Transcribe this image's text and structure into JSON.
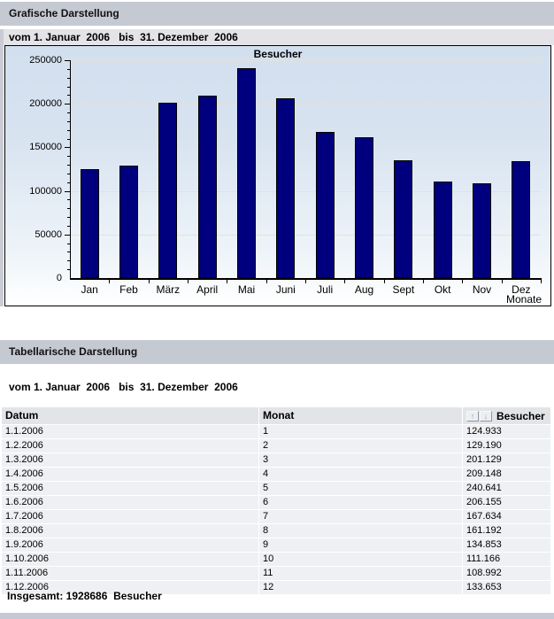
{
  "graph_section": {
    "title": "Grafische Darstellung",
    "date_range": "vom 1. Januar  2006   bis  31. Dezember  2006"
  },
  "chart_data": {
    "type": "bar",
    "title": "Besucher",
    "categories": [
      "Jan",
      "Feb",
      "März",
      "April",
      "Mai",
      "Juni",
      "Juli",
      "Aug",
      "Sept",
      "Okt",
      "Nov",
      "Dez"
    ],
    "values": [
      124933,
      129190,
      201129,
      209148,
      240641,
      206155,
      167634,
      161192,
      134853,
      111166,
      108992,
      133653
    ],
    "xlabel": "Monate",
    "ylabel": "",
    "ylim": [
      0,
      250000
    ],
    "ytick_step": 50000,
    "minor_tick_step": 10000,
    "grid": true,
    "legend": "none",
    "bar_color": "#00007e",
    "bar_border_color": "#000000",
    "gridline_color": "#e7e0da",
    "plot_bg_top": "#d2dfee",
    "plot_bg_bottom": "#ffffff"
  },
  "table_section": {
    "title": "Tabellarische Darstellung",
    "date_range": "vom 1. Januar  2006   bis  31. Dezember  2006",
    "columns": [
      "Datum",
      "Monat",
      "Besucher"
    ],
    "sort_icons": [
      {
        "name": "sort-up-icon",
        "glyph": "↑"
      },
      {
        "name": "sort-down-icon",
        "glyph": "↓"
      }
    ],
    "rows": [
      {
        "datum": "1.1.2006",
        "monat": "1",
        "besucher": "124.933"
      },
      {
        "datum": "1.2.2006",
        "monat": "2",
        "besucher": "129.190"
      },
      {
        "datum": "1.3.2006",
        "monat": "3",
        "besucher": "201.129"
      },
      {
        "datum": "1.4.2006",
        "monat": "4",
        "besucher": "209.148"
      },
      {
        "datum": "1.5.2006",
        "monat": "5",
        "besucher": "240.641"
      },
      {
        "datum": "1.6.2006",
        "monat": "6",
        "besucher": "206.155"
      },
      {
        "datum": "1.7.2006",
        "monat": "7",
        "besucher": "167.634"
      },
      {
        "datum": "1.8.2006",
        "monat": "8",
        "besucher": "161.192"
      },
      {
        "datum": "1.9.2006",
        "monat": "9",
        "besucher": "134.853"
      },
      {
        "datum": "1.10.2006",
        "monat": "10",
        "besucher": "111.166"
      },
      {
        "datum": "1.11.2006",
        "monat": "11",
        "besucher": "108.992"
      },
      {
        "datum": "1.12.2006",
        "monat": "12",
        "besucher": "133.653"
      }
    ],
    "total": "Insgesamt: 1928686  Besucher"
  },
  "colors": {
    "section_header_bg": "#c5c9d2",
    "date_strip_bg": "#e4e4e8",
    "table_header_bg": "#e2e4e8",
    "table_row_bg": "#eef0f3",
    "bottom_strip_bg": "#c5c9d2"
  }
}
